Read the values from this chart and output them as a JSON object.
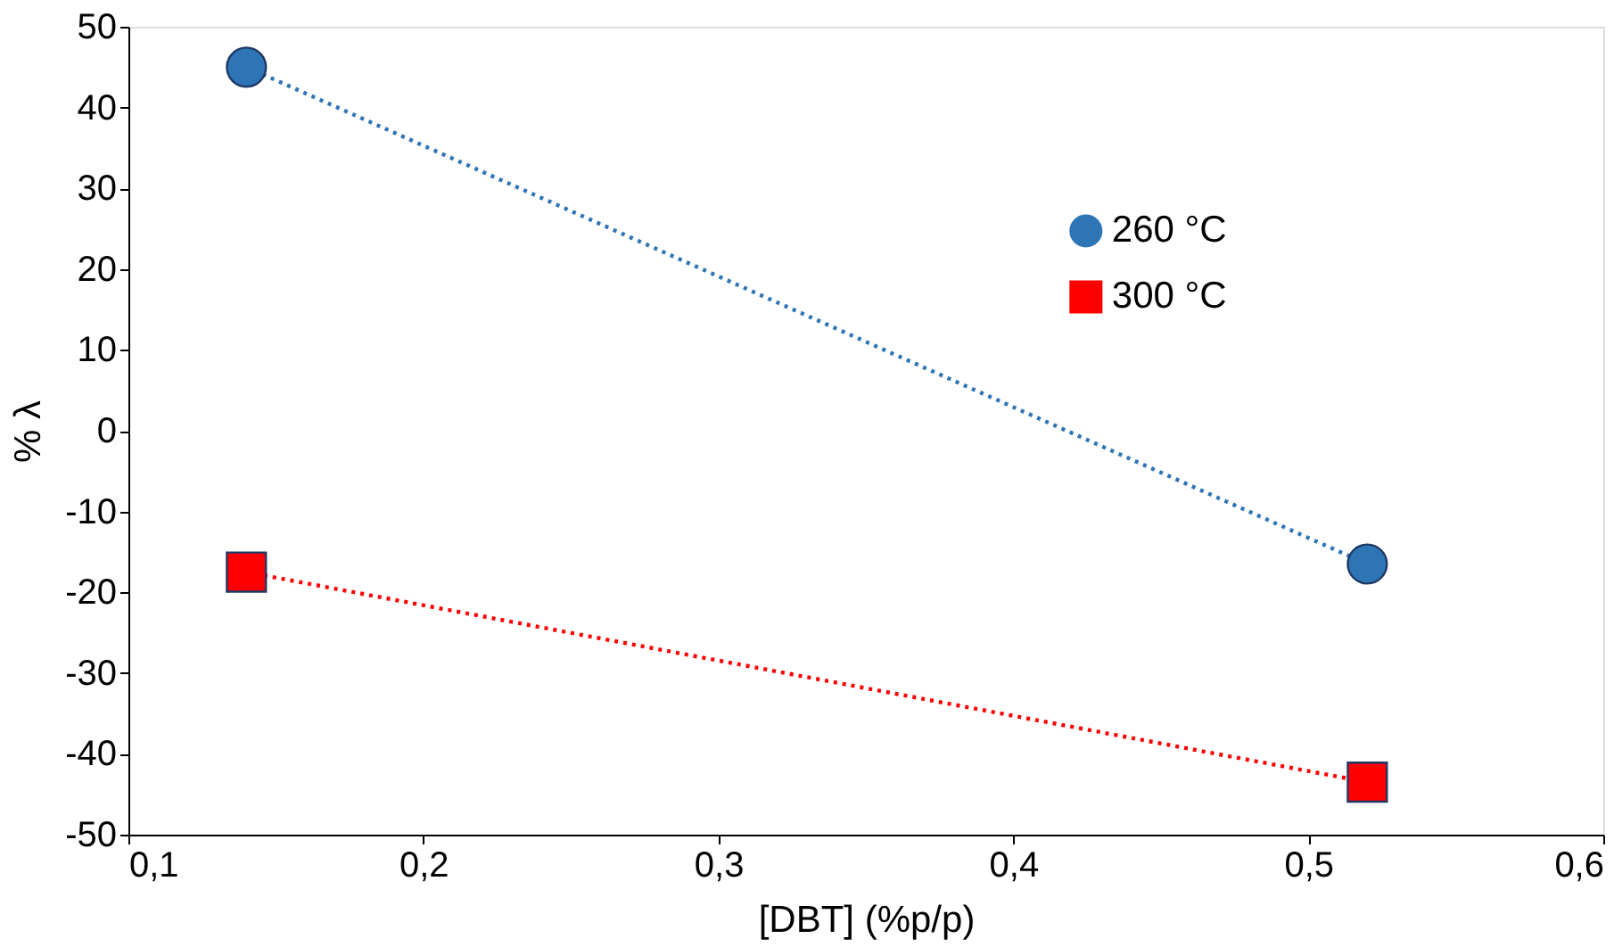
{
  "chart_data": {
    "type": "line",
    "xlabel": "[DBT] (%p/p)",
    "ylabel": "% λ",
    "xlim": [
      0.1,
      0.6
    ],
    "xticks": [
      {
        "value": 0.1,
        "label": "0,1"
      },
      {
        "value": 0.2,
        "label": "0,2"
      },
      {
        "value": 0.3,
        "label": "0,3"
      },
      {
        "value": 0.4,
        "label": "0,4"
      },
      {
        "value": 0.5,
        "label": "0,5"
      },
      {
        "value": 0.6,
        "label": "0,6"
      }
    ],
    "ylim": [
      -50,
      50
    ],
    "yticks": [
      -50,
      -40,
      -30,
      -20,
      -10,
      0,
      10,
      20,
      30,
      40,
      50
    ],
    "grid": false,
    "legend": "right",
    "line_style": "dotted",
    "x": [
      0.14,
      0.52
    ],
    "series": [
      {
        "name": "260 °C",
        "color": "#2e75b6",
        "marker": "circle",
        "values": [
          45,
          -16.5
        ]
      },
      {
        "name": "300 °C",
        "color": "#ff0000",
        "marker": "square",
        "values": [
          -17.5,
          -43.5
        ]
      }
    ]
  }
}
